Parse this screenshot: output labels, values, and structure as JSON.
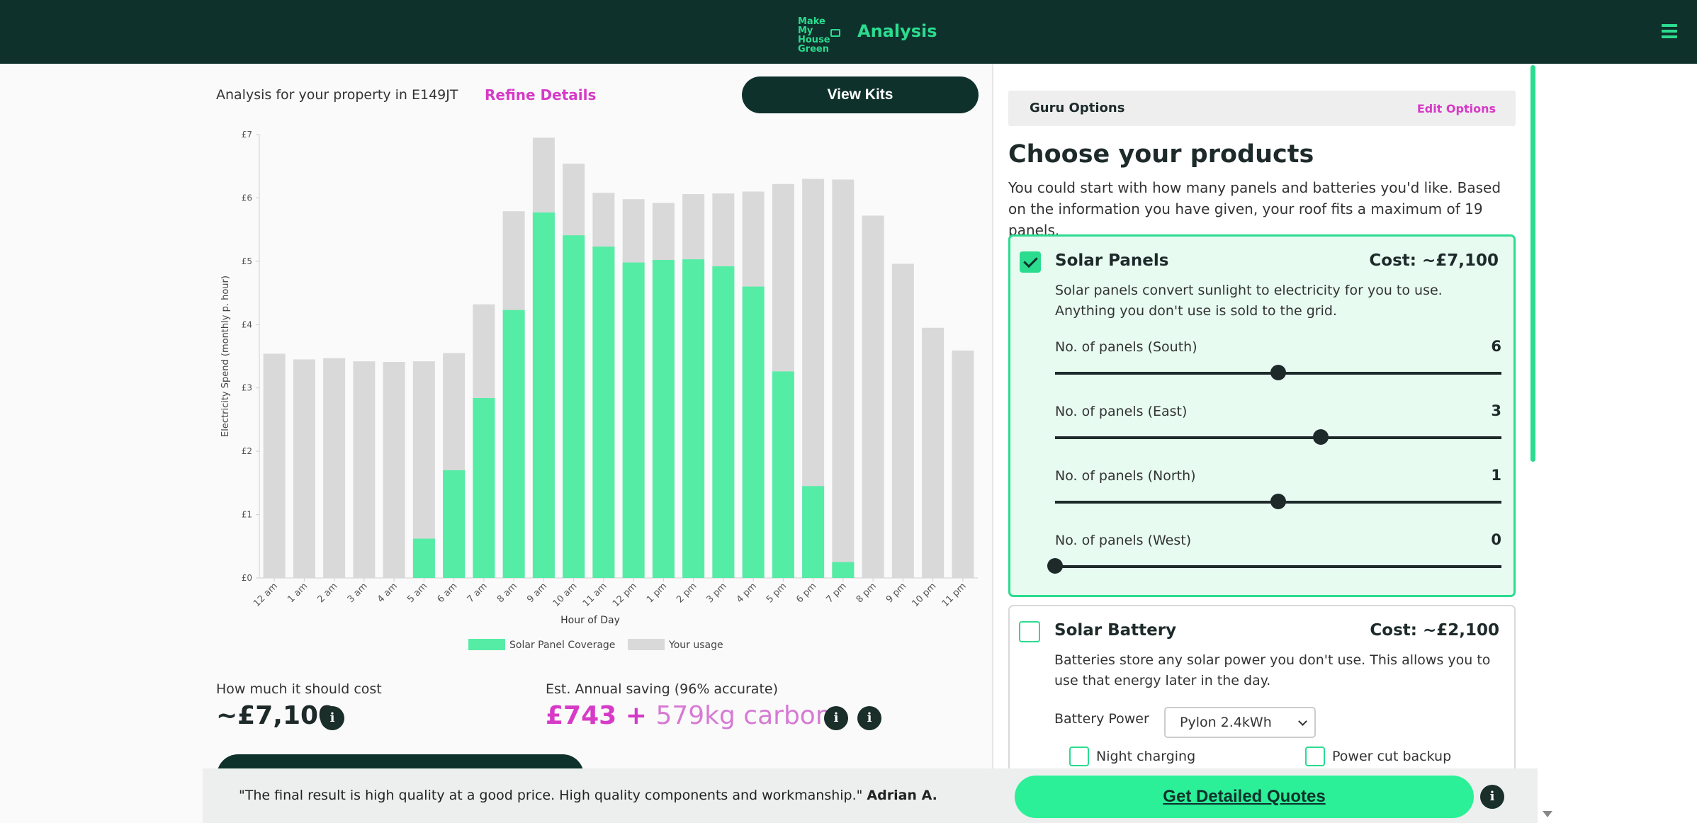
{
  "header": {
    "logo_text": [
      "Make My",
      "House",
      "Green"
    ],
    "title": "Analysis",
    "menu_icon": "hamburger-icon"
  },
  "left": {
    "analysis_for": "Analysis for your property in E149JT",
    "refine_label": "Refine Details",
    "view_kits_label": "View Kits",
    "cost_label": "How much it should cost",
    "cost_value": "~£7,100",
    "saving_label": "Est. Annual saving (96% accurate)",
    "saving_money": "£743 + ",
    "saving_carbon": "579kg carbon"
  },
  "chart_data": {
    "type": "bar",
    "xlabel": "Hour of Day",
    "ylabel": "Electricity Spend (monthly p. hour)",
    "yticks": [
      "£0",
      "£1",
      "£2",
      "£3",
      "£4",
      "£5",
      "£6",
      "£7"
    ],
    "ylim": [
      0,
      7
    ],
    "categories": [
      "12 am",
      "1 am",
      "2 am",
      "3 am",
      "4 am",
      "5 am",
      "6 am",
      "7 am",
      "8 am",
      "9 am",
      "10 am",
      "11 am",
      "12 pm",
      "1 pm",
      "2 pm",
      "3 pm",
      "4 pm",
      "5 pm",
      "6 pm",
      "7 pm",
      "8 pm",
      "9 pm",
      "10 pm",
      "11 pm"
    ],
    "series": [
      {
        "name": "Solar Panel Coverage",
        "color": "#55eca6",
        "values": [
          0,
          0,
          0,
          0,
          0,
          0.62,
          1.7,
          2.84,
          4.23,
          5.77,
          5.41,
          5.23,
          4.98,
          5.02,
          5.03,
          4.92,
          4.6,
          3.26,
          1.45,
          0.25,
          0,
          0,
          0,
          0
        ]
      },
      {
        "name": "Your usage",
        "color": "#d9d9d9",
        "values": [
          3.54,
          3.45,
          3.47,
          3.42,
          3.41,
          3.42,
          3.55,
          4.32,
          5.79,
          6.95,
          6.54,
          6.08,
          5.98,
          5.92,
          6.06,
          6.07,
          6.1,
          6.22,
          6.3,
          6.29,
          5.72,
          4.96,
          3.95,
          3.59
        ]
      }
    ],
    "legend": "bottom"
  },
  "right": {
    "guru_title": "Guru Options",
    "guru_edit": "Edit Options",
    "choose_title": "Choose your products",
    "choose_desc": "You could start with how many panels and batteries you'd like. Based on the information you have given, your roof fits a maximum of 19 panels.",
    "solar": {
      "checked": true,
      "title": "Solar Panels",
      "cost": "Cost: ~£7,100",
      "desc": "Solar panels convert sunlight to electricity for you to use. Anything you don't use is sold to the grid.",
      "sliders": [
        {
          "label": "No. of panels (South)",
          "value": "6",
          "fraction": 0.5
        },
        {
          "label": "No. of panels (East)",
          "value": "3",
          "fraction": 0.595
        },
        {
          "label": "No. of panels (North)",
          "value": "1",
          "fraction": 0.5
        },
        {
          "label": "No. of panels (West)",
          "value": "0",
          "fraction": 0.0
        }
      ]
    },
    "battery": {
      "checked": false,
      "title": "Solar Battery",
      "cost": "Cost: ~£2,100",
      "desc": "Batteries store any solar power you don't use. This allows you to use that energy later in the day.",
      "power_label": "Battery Power",
      "power_selected": "Pylon 2.4kWh",
      "night_charging": "Night charging",
      "power_cut_backup": "Power cut backup"
    }
  },
  "footer": {
    "quote_text": "\"The final result is high quality at a good price. High quality components and workmanship.\"",
    "quote_author": "Adrian A.",
    "cta_label": "Get Detailed Quotes"
  },
  "info_glyph": "i",
  "colors": {
    "brand_dark": "#0f312b",
    "brand_green": "#2bdc8f",
    "accent_pink": "#d63ac7"
  }
}
